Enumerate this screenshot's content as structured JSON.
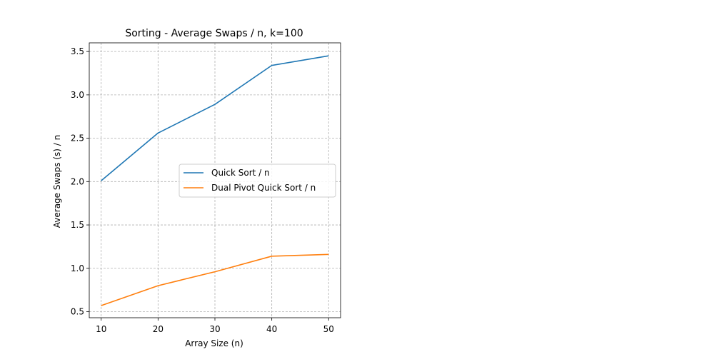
{
  "chart_data": {
    "type": "line",
    "title": "Sorting - Average Swaps / n, k=100",
    "xlabel": "Array Size (n)",
    "ylabel": "Average Swaps (s) / n",
    "x": [
      10,
      20,
      30,
      40,
      50
    ],
    "x_ticks": [
      "10",
      "20",
      "30",
      "40",
      "50"
    ],
    "y_ticks": [
      "0.5",
      "1.0",
      "1.5",
      "2.0",
      "2.5",
      "3.0",
      "3.5"
    ],
    "xlim": [
      7.9,
      52.1
    ],
    "ylim": [
      0.43,
      3.6
    ],
    "grid": true,
    "legend_position": "center-right",
    "series": [
      {
        "name": "Quick Sort / n",
        "color": "#1f77b4",
        "values": [
          2.01,
          2.56,
          2.89,
          3.34,
          3.45
        ]
      },
      {
        "name": "Dual Pivot Quick Sort / n",
        "color": "#ff7f0e",
        "values": [
          0.57,
          0.8,
          0.96,
          1.14,
          1.16
        ]
      }
    ]
  }
}
